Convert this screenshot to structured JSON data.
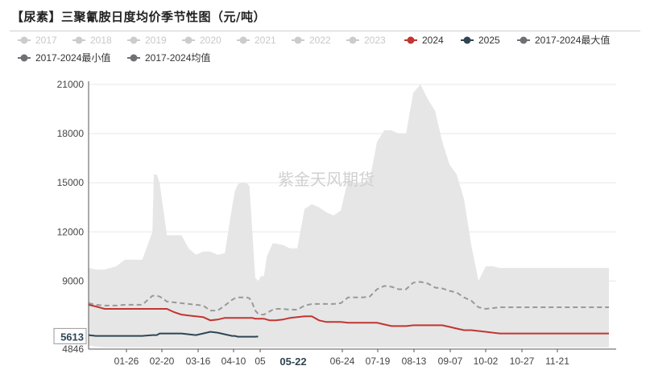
{
  "title": "【尿素】三聚氰胺日度均价季节性图（元/吨）",
  "watermark": "紫金天风期货",
  "chart_data": {
    "type": "line",
    "title": "【尿素】三聚氰胺日度均价季节性图（元/吨）",
    "ylim": [
      4846,
      21000
    ],
    "y_ticks": [
      "21000",
      "18000",
      "15000",
      "12000",
      "9000",
      "4846"
    ],
    "x_ticks": [
      "01-26",
      "02-20",
      "03-16",
      "04-10",
      "05",
      "06-24",
      "07-19",
      "08-13",
      "09-07",
      "10-02",
      "10-27",
      "11-21"
    ],
    "highlight_x_label": "05-22",
    "highlight_y_label": "5613",
    "grid": true,
    "legend_position": "top",
    "legend": [
      {
        "name": "2017",
        "color": "#cccccc",
        "active": false
      },
      {
        "name": "2018",
        "color": "#cccccc",
        "active": false
      },
      {
        "name": "2019",
        "color": "#cccccc",
        "active": false
      },
      {
        "name": "2020",
        "color": "#cccccc",
        "active": false
      },
      {
        "name": "2021",
        "color": "#cccccc",
        "active": false
      },
      {
        "name": "2022",
        "color": "#cccccc",
        "active": false
      },
      {
        "name": "2023",
        "color": "#cccccc",
        "active": false
      },
      {
        "name": "2024",
        "color": "#c23531",
        "active": true
      },
      {
        "name": "2025",
        "color": "#2f4554",
        "active": true
      },
      {
        "name": "2017-2024最大值",
        "color": "#6e7074",
        "active": true
      },
      {
        "name": "2017-2024最小值",
        "color": "#6e7074",
        "active": true
      },
      {
        "name": "2017-2024均值",
        "color": "#6e7074",
        "active": true
      }
    ],
    "x_days": [
      1,
      6,
      12,
      20,
      26,
      32,
      38,
      45,
      46,
      48,
      50,
      52,
      55,
      60,
      65,
      70,
      75,
      80,
      85,
      90,
      95,
      100,
      102,
      104,
      106,
      108,
      110,
      112,
      114,
      116,
      118,
      120,
      122,
      124,
      126,
      128,
      130,
      135,
      140,
      145,
      150,
      155,
      160,
      165,
      170,
      175,
      180,
      185,
      190,
      195,
      200,
      205,
      210,
      215,
      220,
      225,
      230,
      235,
      240,
      245,
      250,
      255,
      260,
      265,
      270,
      275,
      280,
      285,
      290,
      295,
      300,
      305,
      310,
      315,
      320,
      325,
      330,
      335,
      340,
      345,
      350,
      355,
      360
    ],
    "series": [
      {
        "name": "2017-2024最大值",
        "color": "#e6e6e6",
        "style": "area-top",
        "values": [
          9800,
          9700,
          9700,
          9900,
          10300,
          10300,
          10300,
          12000,
          15500,
          15500,
          15000,
          13700,
          11800,
          11800,
          11800,
          11000,
          10600,
          10800,
          10800,
          10600,
          10700,
          13500,
          14500,
          14900,
          15000,
          15000,
          15000,
          14800,
          12000,
          9200,
          9000,
          9300,
          9300,
          10500,
          10900,
          11300,
          11300,
          11200,
          11000,
          11000,
          13400,
          13700,
          13500,
          13200,
          13000,
          13300,
          15200,
          15000,
          15000,
          15200,
          17500,
          18200,
          18200,
          18000,
          18000,
          20500,
          21000,
          20100,
          19400,
          17500,
          16100,
          15500,
          14000,
          11200,
          9000,
          9900,
          9900,
          9800,
          9800,
          9800,
          9800,
          9800,
          9800,
          9800,
          9800,
          9800,
          9800,
          9800,
          9800,
          9800,
          9800,
          9800,
          9800
        ]
      },
      {
        "name": "2017-2024最小值",
        "color": "#e6e6e6",
        "style": "area-bottom",
        "values": [
          5050,
          5000,
          4950,
          4950,
          4950,
          4950,
          4950,
          4950,
          4950,
          4950,
          4950,
          4950,
          4950,
          4950,
          4950,
          4950,
          4950,
          4950,
          4950,
          4950,
          4950,
          4950,
          4950,
          4950,
          4950,
          4950,
          4950,
          4950,
          4950,
          4950,
          4950,
          4950,
          4950,
          4950,
          4950,
          4950,
          4950,
          4950,
          4950,
          4950,
          4950,
          4950,
          4950,
          4950,
          4950,
          4950,
          4950,
          4950,
          4950,
          4950,
          4950,
          4950,
          4950,
          4950,
          4950,
          4950,
          4950,
          4950,
          4950,
          4950,
          4950,
          4950,
          4950,
          4950,
          4950,
          4950,
          4950,
          4950,
          4950,
          4950,
          4950,
          4950,
          4950,
          4950,
          4950,
          4950,
          4950,
          4950,
          4950,
          4950,
          4950,
          4950,
          4950
        ]
      },
      {
        "name": "2017-2024均值",
        "color": "#999999",
        "style": "dashed",
        "values": [
          7650,
          7550,
          7500,
          7500,
          7550,
          7550,
          7550,
          8100,
          8100,
          8100,
          8050,
          7950,
          7750,
          7700,
          7650,
          7600,
          7550,
          7500,
          7200,
          7200,
          7500,
          7850,
          7950,
          8000,
          8000,
          8000,
          8000,
          7950,
          7650,
          7200,
          7000,
          6950,
          6950,
          7050,
          7150,
          7250,
          7300,
          7300,
          7250,
          7250,
          7500,
          7600,
          7600,
          7600,
          7600,
          7650,
          8000,
          8000,
          8000,
          8050,
          8500,
          8700,
          8650,
          8500,
          8500,
          8900,
          8950,
          8850,
          8600,
          8550,
          8400,
          8300,
          8000,
          7800,
          7400,
          7300,
          7350,
          7400,
          7400,
          7400,
          7400,
          7400,
          7400,
          7400,
          7400,
          7400,
          7400,
          7400,
          7400,
          7400,
          7400,
          7400,
          7400
        ]
      },
      {
        "name": "2024",
        "color": "#c23531",
        "style": "solid",
        "values": [
          7550,
          7450,
          7300,
          7300,
          7300,
          7300,
          7300,
          7300,
          7300,
          7300,
          7300,
          7300,
          7300,
          7100,
          6950,
          6900,
          6850,
          6800,
          6600,
          6650,
          6750,
          6750,
          6750,
          6750,
          6750,
          6750,
          6750,
          6750,
          6750,
          6700,
          6700,
          6700,
          6700,
          6650,
          6600,
          6600,
          6600,
          6650,
          6750,
          6800,
          6850,
          6850,
          6600,
          6500,
          6500,
          6500,
          6450,
          6450,
          6450,
          6450,
          6450,
          6350,
          6250,
          6250,
          6250,
          6300,
          6300,
          6300,
          6300,
          6300,
          6200,
          6100,
          6000,
          6000,
          5950,
          5900,
          5850,
          5800,
          5800,
          5800,
          5800,
          5800,
          5800,
          5800,
          5800,
          5800,
          5800,
          5800,
          5800,
          5800,
          5800,
          5800,
          5800
        ]
      },
      {
        "name": "2025",
        "color": "#2f4554",
        "style": "solid",
        "values": [
          5700,
          5650,
          5650,
          5650,
          5650,
          5650,
          5650,
          5700,
          5700,
          5700,
          5800,
          5800,
          5800,
          5800,
          5800,
          5750,
          5700,
          5800,
          5900,
          5850,
          5750,
          5650,
          5650,
          5600,
          5600,
          5600,
          5600,
          5600,
          5600,
          5600,
          5613
        ]
      }
    ]
  }
}
